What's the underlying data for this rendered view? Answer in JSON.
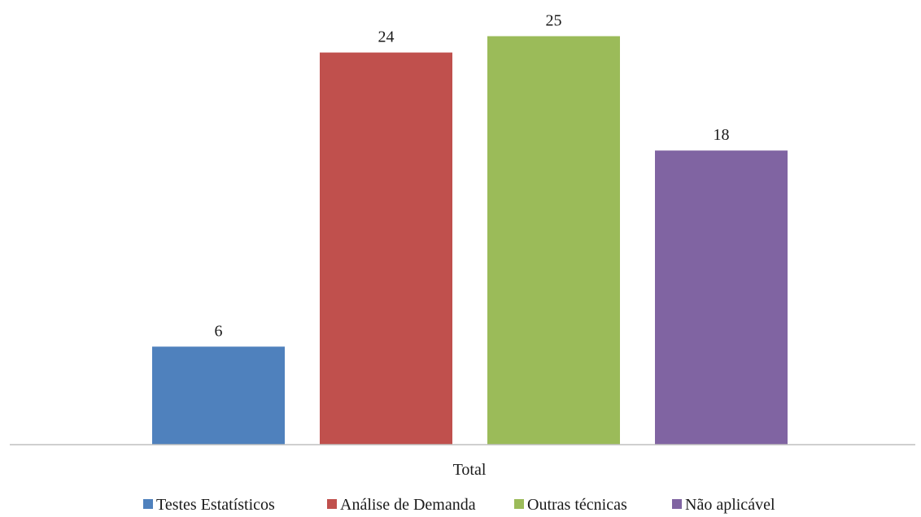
{
  "chart_data": {
    "type": "bar",
    "categories": [
      "Total"
    ],
    "series": [
      {
        "name": "Testes Estatísticos",
        "values": [
          6
        ],
        "color": "#4F81BD"
      },
      {
        "name": "Análise de Demanda",
        "values": [
          24
        ],
        "color": "#C0504D"
      },
      {
        "name": "Outras técnicas",
        "values": [
          25
        ],
        "color": "#9BBB59"
      },
      {
        "name": "Não aplicável",
        "values": [
          18
        ],
        "color": "#8064A2"
      }
    ],
    "data_labels": [
      "6",
      "24",
      "25",
      "18"
    ],
    "title": "",
    "xlabel": "",
    "ylabel": "",
    "ylim": [
      0,
      27
    ],
    "grid": false,
    "legend_position": "bottom",
    "axis_color": "#bfbfbf"
  }
}
